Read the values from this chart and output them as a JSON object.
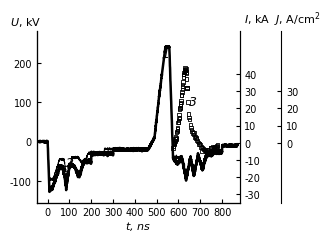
{
  "xlabel": "t, ns",
  "ylabel_left": "U, kV",
  "ylabel_right": "I, kA  J, A/cm²",
  "xlim": [
    -50,
    880
  ],
  "ylim_left": [
    -155,
    280
  ],
  "ylim_right": [
    -35,
    65
  ],
  "yticks_left": [
    -100,
    0,
    100,
    200
  ],
  "yticks_right_inner": [
    -30,
    -20,
    -10,
    0,
    10,
    20,
    30,
    40
  ],
  "yticks_right_outer": [
    0,
    10,
    20,
    30
  ],
  "xticks": [
    0,
    100,
    200,
    300,
    400,
    500,
    600,
    700,
    800
  ],
  "background_color": "#ffffff",
  "tick_fontsize": 7,
  "label_fontsize": 8
}
